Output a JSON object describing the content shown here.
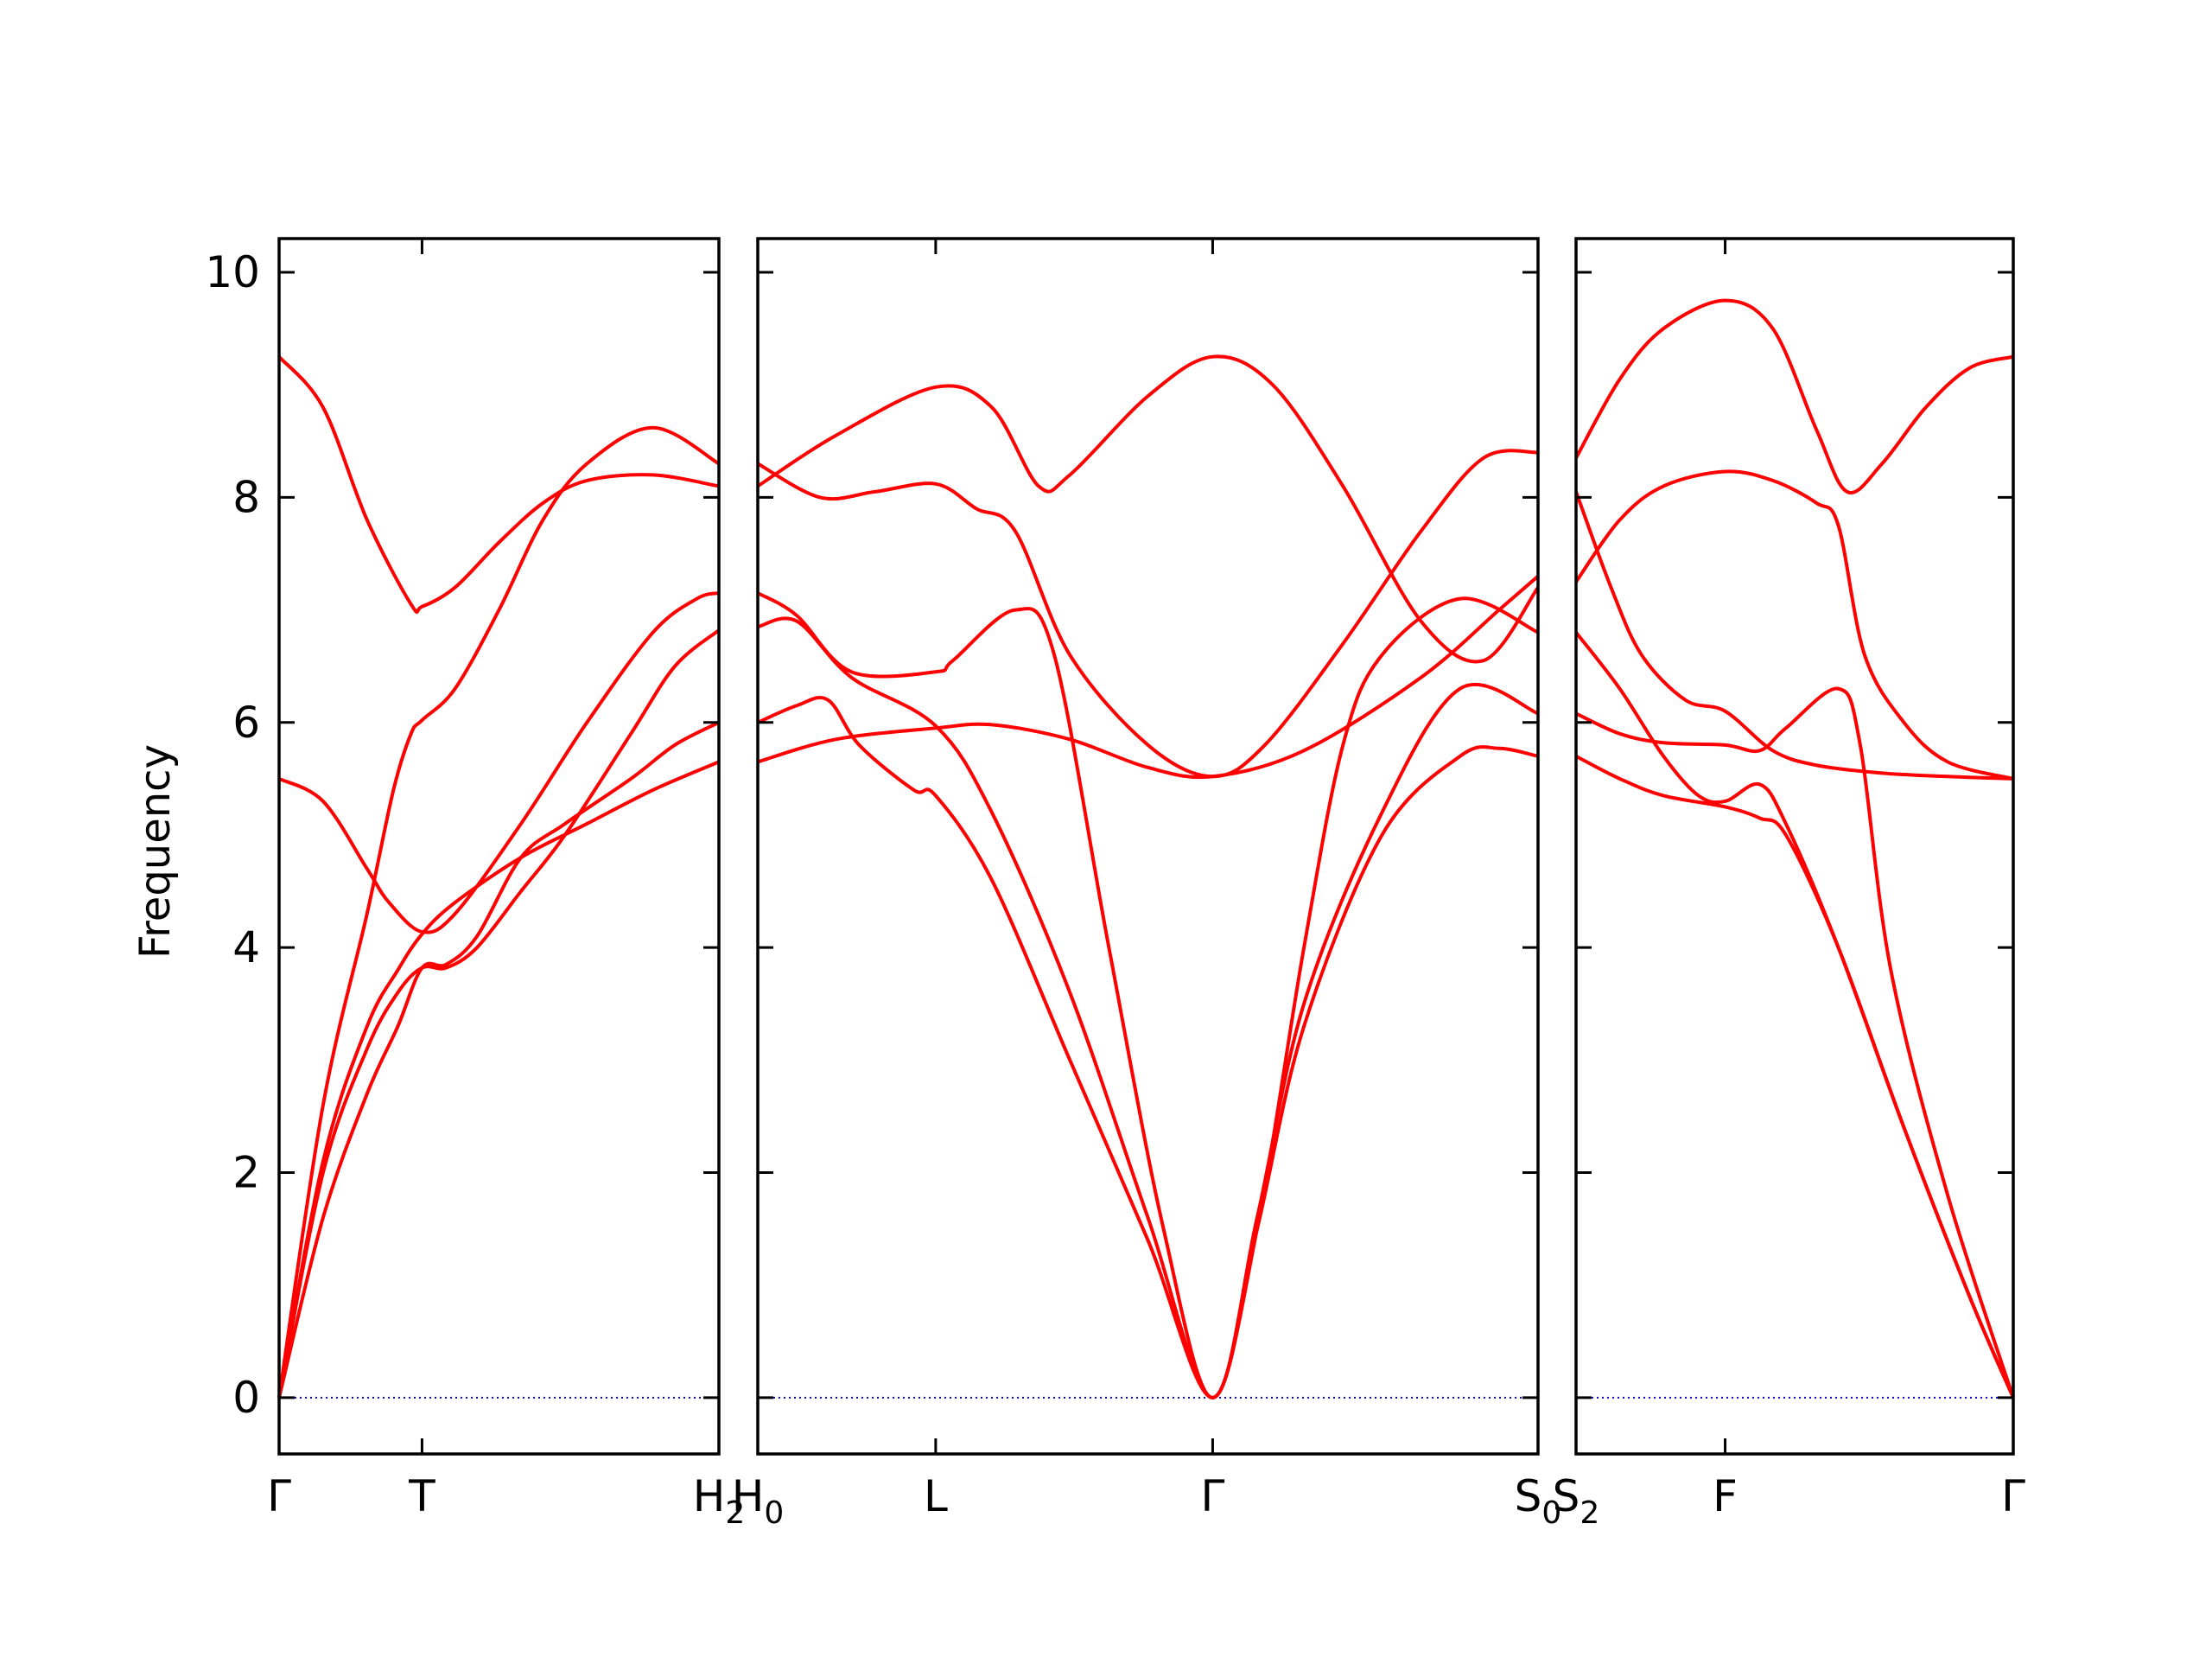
{
  "chart_data": {
    "type": "line",
    "title": "",
    "ylabel": "Frequency",
    "ylim": [
      -0.5,
      10.3
    ],
    "y_ticks": [
      0,
      2,
      4,
      6,
      8,
      10
    ],
    "grid": false,
    "legend": "none",
    "colors": {
      "band": "#ff0000",
      "zero_line": "#0000cc",
      "axes": "#000000"
    },
    "panels": [
      {
        "name": "Γ-T-H2",
        "x_range": [
          0,
          1
        ],
        "x_ticks": [
          {
            "pos": 0,
            "label": "Γ"
          },
          {
            "pos": 0.325,
            "label": "T"
          },
          {
            "pos": 1,
            "label": "H",
            "sub": "2"
          }
        ],
        "bands": [
          [
            [
              0,
              0
            ],
            [
              0.1,
              2.0
            ],
            [
              0.2,
              3.1
            ],
            [
              0.27,
              3.6
            ],
            [
              0.325,
              3.82
            ],
            [
              0.38,
              3.82
            ],
            [
              0.45,
              4.0
            ],
            [
              0.55,
              4.5
            ],
            [
              0.65,
              5.0
            ],
            [
              0.8,
              5.9
            ],
            [
              0.9,
              6.5
            ],
            [
              1,
              6.82
            ]
          ],
          [
            [
              0,
              0
            ],
            [
              0.1,
              1.6
            ],
            [
              0.2,
              2.7
            ],
            [
              0.27,
              3.3
            ],
            [
              0.325,
              3.82
            ],
            [
              0.38,
              3.85
            ],
            [
              0.45,
              4.1
            ],
            [
              0.55,
              4.8
            ],
            [
              0.65,
              5.1
            ],
            [
              0.8,
              5.5
            ],
            [
              0.9,
              5.8
            ],
            [
              1,
              6.0
            ]
          ],
          [
            [
              0,
              0
            ],
            [
              0.1,
              2.6
            ],
            [
              0.2,
              4.3
            ],
            [
              0.26,
              5.4
            ],
            [
              0.3,
              5.9
            ],
            [
              0.325,
              6.02
            ],
            [
              0.4,
              6.3
            ],
            [
              0.5,
              7.0
            ],
            [
              0.6,
              7.8
            ],
            [
              0.7,
              8.3
            ],
            [
              0.85,
              8.62
            ],
            [
              1,
              8.3
            ]
          ],
          [
            [
              0,
              5.5
            ],
            [
              0.1,
              5.3
            ],
            [
              0.2,
              4.7
            ],
            [
              0.25,
              4.4
            ],
            [
              0.325,
              4.14
            ],
            [
              0.4,
              4.3
            ],
            [
              0.55,
              5.1
            ],
            [
              0.7,
              6.0
            ],
            [
              0.85,
              6.8
            ],
            [
              0.95,
              7.1
            ],
            [
              1,
              7.15
            ]
          ],
          [
            [
              0,
              9.25
            ],
            [
              0.1,
              8.8
            ],
            [
              0.2,
              7.8
            ],
            [
              0.3,
              7.05
            ],
            [
              0.325,
              7.03
            ],
            [
              0.4,
              7.2
            ],
            [
              0.5,
              7.6
            ],
            [
              0.6,
              7.95
            ],
            [
              0.7,
              8.15
            ],
            [
              0.85,
              8.2
            ],
            [
              1,
              8.1
            ]
          ],
          [
            [
              0,
              0
            ],
            [
              0.1,
              2.1
            ],
            [
              0.2,
              3.3
            ],
            [
              0.27,
              3.8
            ],
            [
              0.325,
              4.12
            ],
            [
              0.4,
              4.4
            ],
            [
              0.55,
              4.8
            ],
            [
              0.7,
              5.1
            ],
            [
              0.85,
              5.4
            ],
            [
              1,
              5.65
            ]
          ]
        ]
      },
      {
        "name": "H0-L-Γ-S0",
        "x_range": [
          0,
          1
        ],
        "x_ticks": [
          {
            "pos": 0,
            "label": "H",
            "sub": "0"
          },
          {
            "pos": 0.228,
            "label": "L"
          },
          {
            "pos": 0.583,
            "label": "Γ"
          },
          {
            "pos": 1,
            "label": "S",
            "sub": "0"
          }
        ],
        "bands": [
          [
            [
              0,
              8.1
            ],
            [
              0.1,
              8.55
            ],
            [
              0.228,
              8.98
            ],
            [
              0.3,
              8.8
            ],
            [
              0.36,
              8.1
            ],
            [
              0.4,
              8.2
            ],
            [
              0.5,
              8.9
            ],
            [
              0.583,
              9.25
            ],
            [
              0.66,
              9.0
            ],
            [
              0.75,
              8.1
            ],
            [
              0.85,
              6.9
            ],
            [
              0.93,
              6.55
            ],
            [
              1,
              7.2
            ]
          ],
          [
            [
              0,
              8.3
            ],
            [
              0.08,
              8.0
            ],
            [
              0.15,
              8.05
            ],
            [
              0.228,
              8.12
            ],
            [
              0.28,
              7.9
            ],
            [
              0.33,
              7.7
            ],
            [
              0.4,
              6.6
            ],
            [
              0.5,
              5.8
            ],
            [
              0.583,
              5.52
            ],
            [
              0.65,
              5.8
            ],
            [
              0.75,
              6.7
            ],
            [
              0.85,
              7.7
            ],
            [
              0.93,
              8.35
            ],
            [
              1,
              8.4
            ]
          ],
          [
            [
              0,
              7.15
            ],
            [
              0.05,
              6.95
            ],
            [
              0.12,
              6.45
            ],
            [
              0.228,
              6.45
            ],
            [
              0.25,
              6.55
            ],
            [
              0.33,
              7.0
            ],
            [
              0.38,
              6.6
            ],
            [
              0.45,
              4.0
            ],
            [
              0.52,
              1.5
            ],
            [
              0.583,
              0.0
            ],
            [
              0.64,
              1.5
            ],
            [
              0.7,
              4.0
            ],
            [
              0.75,
              5.8
            ],
            [
              0.8,
              6.6
            ],
            [
              0.9,
              7.1
            ],
            [
              1,
              6.8
            ]
          ],
          [
            [
              0,
              6.85
            ],
            [
              0.05,
              6.9
            ],
            [
              0.12,
              6.4
            ],
            [
              0.228,
              5.97
            ],
            [
              0.3,
              5.2
            ],
            [
              0.4,
              3.6
            ],
            [
              0.5,
              1.6
            ],
            [
              0.583,
              0.0
            ],
            [
              0.64,
              1.6
            ],
            [
              0.7,
              3.5
            ],
            [
              0.8,
              5.2
            ],
            [
              0.9,
              6.3
            ],
            [
              1,
              6.08
            ]
          ],
          [
            [
              0,
              6.0
            ],
            [
              0.05,
              6.15
            ],
            [
              0.09,
              6.2
            ],
            [
              0.13,
              5.8
            ],
            [
              0.2,
              5.4
            ],
            [
              0.228,
              5.35
            ],
            [
              0.3,
              4.6
            ],
            [
              0.4,
              3.0
            ],
            [
              0.5,
              1.4
            ],
            [
              0.583,
              0.0
            ],
            [
              0.64,
              1.5
            ],
            [
              0.7,
              3.3
            ],
            [
              0.8,
              5.0
            ],
            [
              0.9,
              5.7
            ],
            [
              0.95,
              5.77
            ],
            [
              1,
              5.7
            ]
          ],
          [
            [
              0,
              5.65
            ],
            [
              0.1,
              5.85
            ],
            [
              0.228,
              5.95
            ],
            [
              0.3,
              5.98
            ],
            [
              0.4,
              5.85
            ],
            [
              0.5,
              5.6
            ],
            [
              0.583,
              5.52
            ],
            [
              0.7,
              5.75
            ],
            [
              0.85,
              6.4
            ],
            [
              0.95,
              7.0
            ],
            [
              1,
              7.3
            ]
          ]
        ]
      },
      {
        "name": "S2-F-Γ",
        "x_range": [
          0,
          1
        ],
        "x_ticks": [
          {
            "pos": 0,
            "label": "S",
            "sub": "2"
          },
          {
            "pos": 0.341,
            "label": "F"
          },
          {
            "pos": 1,
            "label": "Γ"
          }
        ],
        "bands": [
          [
            [
              0,
              8.35
            ],
            [
              0.1,
              9.05
            ],
            [
              0.2,
              9.5
            ],
            [
              0.341,
              9.75
            ],
            [
              0.45,
              9.5
            ],
            [
              0.55,
              8.6
            ],
            [
              0.62,
              8.05
            ],
            [
              0.7,
              8.3
            ],
            [
              0.8,
              8.8
            ],
            [
              0.9,
              9.15
            ],
            [
              1,
              9.25
            ]
          ],
          [
            [
              0,
              7.25
            ],
            [
              0.1,
              7.8
            ],
            [
              0.2,
              8.1
            ],
            [
              0.341,
              8.23
            ],
            [
              0.45,
              8.15
            ],
            [
              0.55,
              7.95
            ],
            [
              0.6,
              7.75
            ],
            [
              0.66,
              6.6
            ],
            [
              0.75,
              6.0
            ],
            [
              0.85,
              5.65
            ],
            [
              1,
              5.5
            ]
          ],
          [
            [
              0,
              8.05
            ],
            [
              0.08,
              7.2
            ],
            [
              0.15,
              6.6
            ],
            [
              0.25,
              6.2
            ],
            [
              0.341,
              6.1
            ],
            [
              0.45,
              5.75
            ],
            [
              0.55,
              5.62
            ],
            [
              0.7,
              5.55
            ],
            [
              0.85,
              5.52
            ],
            [
              1,
              5.5
            ]
          ],
          [
            [
              0,
              6.8
            ],
            [
              0.1,
              6.3
            ],
            [
              0.2,
              5.7
            ],
            [
              0.28,
              5.35
            ],
            [
              0.341,
              5.3
            ],
            [
              0.42,
              5.45
            ],
            [
              0.48,
              5.1
            ],
            [
              0.6,
              4.0
            ],
            [
              0.75,
              2.4
            ],
            [
              0.9,
              0.9
            ],
            [
              1,
              0.0
            ]
          ],
          [
            [
              0,
              6.08
            ],
            [
              0.1,
              5.9
            ],
            [
              0.2,
              5.82
            ],
            [
              0.341,
              5.8
            ],
            [
              0.42,
              5.75
            ],
            [
              0.48,
              5.95
            ],
            [
              0.6,
              6.3
            ],
            [
              0.65,
              5.8
            ],
            [
              0.72,
              3.8
            ],
            [
              0.85,
              1.8
            ],
            [
              1,
              0.0
            ]
          ],
          [
            [
              0,
              5.7
            ],
            [
              0.1,
              5.5
            ],
            [
              0.2,
              5.35
            ],
            [
              0.341,
              5.25
            ],
            [
              0.42,
              5.15
            ],
            [
              0.48,
              5.0
            ],
            [
              0.6,
              4.0
            ],
            [
              0.75,
              2.4
            ],
            [
              0.9,
              0.9
            ],
            [
              1,
              0.0
            ]
          ]
        ]
      }
    ]
  }
}
